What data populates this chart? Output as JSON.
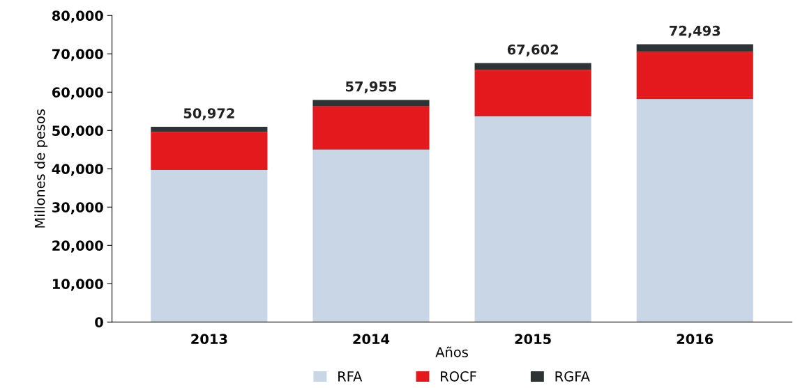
{
  "chart_data": {
    "type": "bar",
    "stacked": true,
    "xlabel": "Años",
    "ylabel": "Millones de pesos",
    "categories": [
      "2013",
      "2014",
      "2015",
      "2016"
    ],
    "series": [
      {
        "name": "RFA",
        "color": "#c9d6e6",
        "values": [
          39700,
          45000,
          53700,
          58200
        ]
      },
      {
        "name": "ROCF",
        "color": "#e3191e",
        "values": [
          9900,
          11300,
          12100,
          12300
        ]
      },
      {
        "name": "RGFA",
        "color": "#2e3436",
        "values": [
          1372,
          1655,
          1802,
          1993
        ]
      }
    ],
    "totals": [
      "50,972",
      "57,955",
      "67,602",
      "72,493"
    ],
    "ylim": [
      0,
      80000
    ],
    "yticks": [
      {
        "value": 0,
        "label": "0"
      },
      {
        "value": 10000,
        "label": "10,000"
      },
      {
        "value": 20000,
        "label": "20,000"
      },
      {
        "value": 30000,
        "label": "30,000"
      },
      {
        "value": 40000,
        "label": "40,000"
      },
      {
        "value": 50000,
        "label": "50,000"
      },
      {
        "value": 60000,
        "label": "60,000"
      },
      {
        "value": 70000,
        "label": "70,000"
      },
      {
        "value": 80000,
        "label": "80,000"
      }
    ],
    "grid": false,
    "legend": "bottom"
  }
}
